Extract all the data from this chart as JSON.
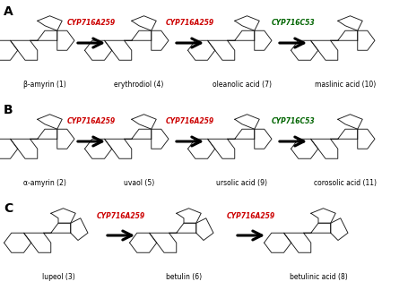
{
  "background_color": "#ffffff",
  "panel_labels": [
    "A",
    "B",
    "C"
  ],
  "row_A": {
    "compounds": [
      "β-amyrin (1)",
      "erythrodiol (4)",
      "oleanolic acid (7)",
      "maslinic acid (10)"
    ],
    "enzyme_labels": [
      "CYP716A259",
      "CYP716A259",
      "CYP716C53"
    ],
    "enzyme_colors": [
      "#cc0000",
      "#cc0000",
      "#006400"
    ]
  },
  "row_B": {
    "compounds": [
      "α-amyrin (2)",
      "uvaol (5)",
      "ursolic acid (9)",
      "corosolic acid (11)"
    ],
    "enzyme_labels": [
      "CYP716A259",
      "CYP716A259",
      "CYP716C53"
    ],
    "enzyme_colors": [
      "#cc0000",
      "#cc0000",
      "#006400"
    ]
  },
  "row_C": {
    "compounds": [
      "lupeol (3)",
      "betulin (6)",
      "betulinic acid (8)"
    ],
    "enzyme_labels": [
      "CYP716A259",
      "CYP716A259"
    ],
    "enzyme_colors": [
      "#cc0000",
      "#cc0000"
    ]
  }
}
